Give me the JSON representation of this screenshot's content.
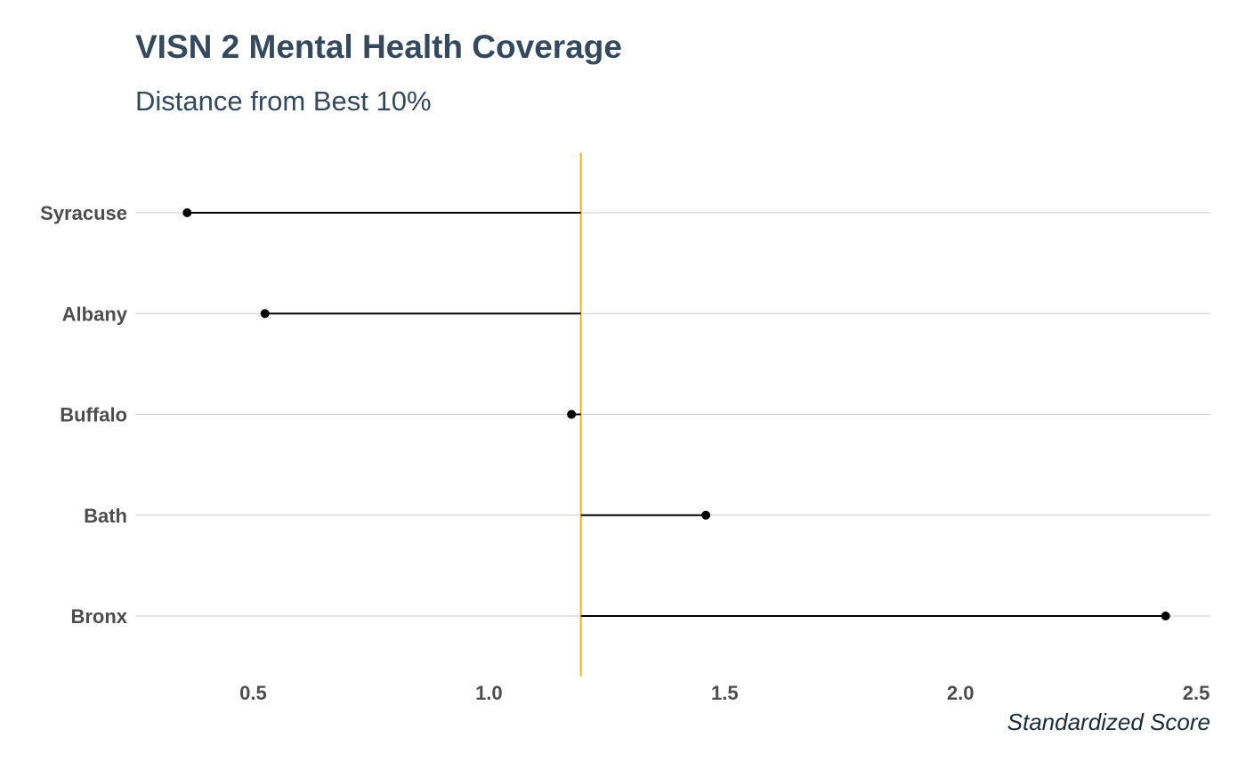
{
  "chart_data": {
    "type": "dot-line",
    "title": "VISN 2 Mental Health Coverage",
    "subtitle": "Distance from Best 10%",
    "xlabel": "Standardized Score",
    "ylabel": "",
    "xlim": [
      0.25,
      2.53
    ],
    "x_ticks": [
      0.5,
      1.0,
      1.5,
      2.0,
      2.5
    ],
    "x_tick_labels": [
      "0.5",
      "1.0",
      "1.5",
      "2.0",
      "2.5"
    ],
    "reference_value": 1.195,
    "reference_color": "#f2b50f",
    "categories": [
      "Syracuse",
      "Albany",
      "Buffalo",
      "Bath",
      "Bronx"
    ],
    "values": [
      0.36,
      0.525,
      1.175,
      1.46,
      2.435
    ],
    "point_color": "#000000",
    "gridlines": "horizontal",
    "legend": "none"
  }
}
